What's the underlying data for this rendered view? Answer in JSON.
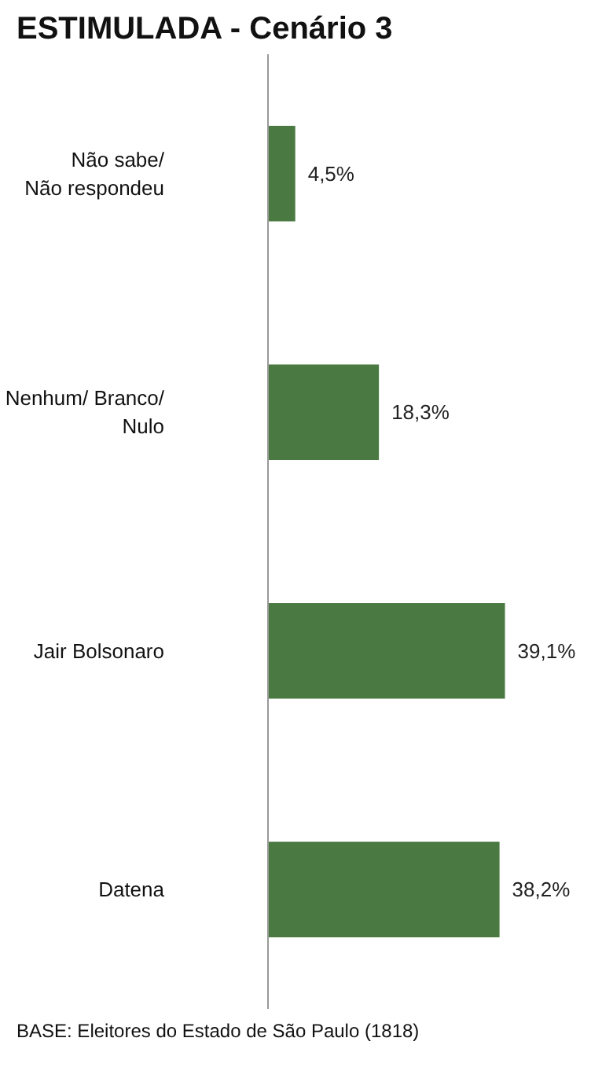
{
  "chart_data": {
    "type": "bar",
    "orientation": "horizontal",
    "title": "ESTIMULADA - Cenário 3",
    "categories": [
      "Não sabe/\nNão respondeu",
      "Nenhum/ Branco/\nNulo",
      "Jair Bolsonaro",
      "Datena"
    ],
    "values": [
      4.5,
      18.3,
      39.1,
      38.2
    ],
    "value_labels": [
      "4,5%",
      "18,3%",
      "39,1%",
      "38,2%"
    ],
    "color": "#4a7a42",
    "tick_labels": "y",
    "grid": false,
    "annotations": [
      "BASE: Eleitores do Estado de São Paulo (1818)"
    ]
  }
}
